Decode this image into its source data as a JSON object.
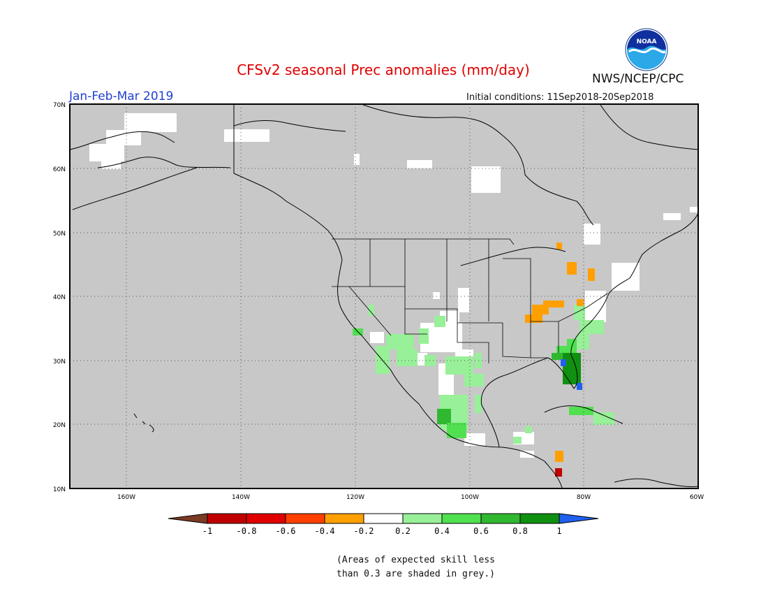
{
  "header": {
    "title": "CFSv2 seasonal Prec anomalies (mm/day)",
    "season": "Jan-Feb-Mar 2019",
    "initial_conditions": "Initial conditions: 11Sep2018-20Sep2018",
    "agency": "NWS/NCEP/CPC",
    "logo_text": "NOAA"
  },
  "axes": {
    "lat_labels": [
      "70N",
      "60N",
      "50N",
      "40N",
      "30N",
      "20N",
      "10N"
    ],
    "lon_labels": [
      "160W",
      "140W",
      "120W",
      "100W",
      "80W",
      "60W"
    ]
  },
  "legend": {
    "labels": [
      "-1",
      "-0.8",
      "-0.6",
      "-0.4",
      "-0.2",
      "0.2",
      "0.4",
      "0.6",
      "0.8",
      "1"
    ],
    "colors": [
      "#7b3a22",
      "#c00000",
      "#e00000",
      "#ff4000",
      "#ffa000",
      "#ffffff",
      "#98f098",
      "#50e050",
      "#30b830",
      "#109010",
      "#2060f0"
    ]
  },
  "footnote": {
    "line1": "(Areas of expected skill less",
    "line2": "than 0.3 are shaded in grey.)"
  },
  "colors": {
    "grey_mask": "#c8c8c8",
    "title": "#e00000",
    "season": "#2040d0"
  }
}
